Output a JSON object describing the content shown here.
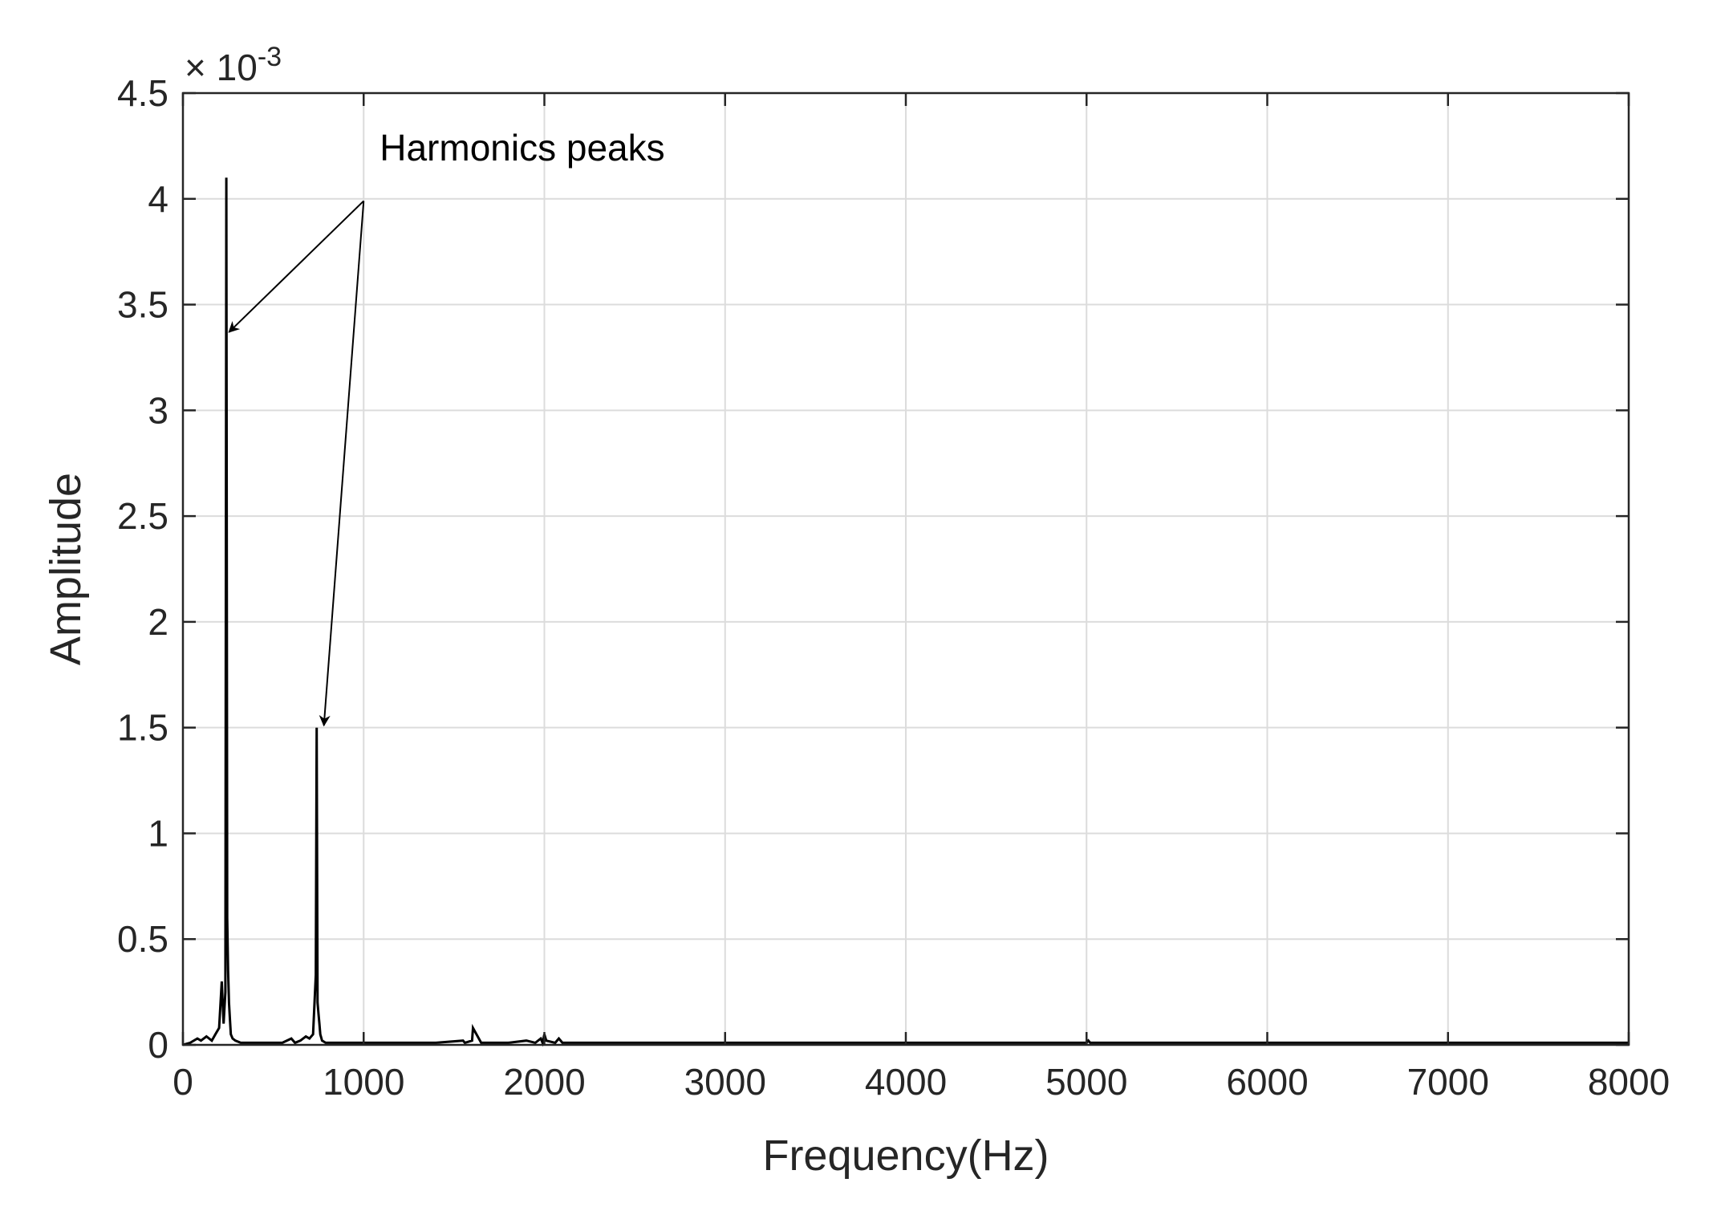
{
  "chart_data": {
    "type": "line",
    "title": "",
    "xlabel": "Frequency(Hz)",
    "ylabel": "Amplitude",
    "y_exponent_label": "× 10",
    "y_exponent_power": "-3",
    "xlim": [
      0,
      8000
    ],
    "ylim": [
      0,
      4.5
    ],
    "xticks": [
      "0",
      "1000",
      "2000",
      "3000",
      "4000",
      "5000",
      "6000",
      "7000",
      "8000"
    ],
    "yticks": [
      "0",
      "0.5",
      "1",
      "1.5",
      "2",
      "2.5",
      "3",
      "3.5",
      "4",
      "4.5"
    ],
    "grid": true,
    "series": [
      {
        "x": [
          0,
          40,
          80,
          100,
          130,
          160,
          180,
          200,
          215,
          225,
          235,
          240,
          245,
          250,
          255,
          260,
          265,
          275,
          290,
          320,
          380,
          450,
          550,
          600,
          620,
          650,
          680,
          700,
          720,
          735,
          740,
          745,
          750,
          755,
          760,
          770,
          790,
          820,
          900,
          1000,
          1200,
          1400,
          1550,
          1560,
          1600,
          1605,
          1650,
          1800,
          1900,
          1950,
          1980,
          1990,
          2000,
          2010,
          2060,
          2080,
          2100,
          2500,
          3000,
          4000,
          5000,
          5010,
          5020,
          6000,
          7000,
          8000
        ],
        "values": [
          0,
          0.01,
          0.03,
          0.02,
          0.04,
          0.02,
          0.05,
          0.08,
          0.3,
          0.1,
          0.25,
          4.1,
          0.6,
          0.35,
          0.2,
          0.12,
          0.05,
          0.03,
          0.02,
          0.01,
          0.01,
          0.01,
          0.01,
          0.03,
          0.01,
          0.02,
          0.04,
          0.03,
          0.05,
          0.33,
          1.5,
          0.2,
          0.15,
          0.1,
          0.05,
          0.02,
          0.01,
          0.01,
          0.01,
          0.01,
          0.01,
          0.01,
          0.02,
          0.01,
          0.02,
          0.08,
          0.01,
          0.01,
          0.02,
          0.01,
          0.03,
          0.01,
          0.05,
          0.02,
          0.01,
          0.03,
          0.01,
          0.01,
          0.01,
          0.01,
          0.01,
          0.02,
          0.01,
          0.01,
          0.01,
          0.01
        ]
      }
    ],
    "annotations": [
      {
        "text": "Harmonics peaks",
        "anchor": [
          1000,
          3.99
        ],
        "arrows_to": [
          [
            255,
            3.37
          ],
          [
            780,
            1.51
          ]
        ]
      }
    ]
  }
}
